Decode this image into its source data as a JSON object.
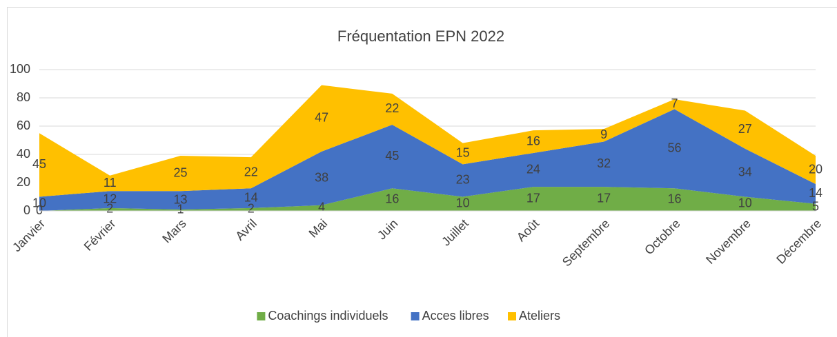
{
  "chart_data": {
    "type": "area",
    "stacked": true,
    "title": "Fréquentation EPN 2022",
    "categories": [
      "Janvier",
      "Février",
      "Mars",
      "Avril",
      "Mai",
      "Juin",
      "Juillet",
      "Août",
      "Septembre",
      "Octobre",
      "Novembre",
      "Décembre"
    ],
    "series": [
      {
        "name": "Coachings individuels",
        "color": "#70ad47",
        "values": [
          0,
          2,
          1,
          2,
          4,
          16,
          10,
          17,
          17,
          16,
          10,
          5
        ]
      },
      {
        "name": "Acces libres",
        "color": "#4472c4",
        "values": [
          10,
          12,
          13,
          14,
          38,
          45,
          23,
          24,
          32,
          56,
          34,
          14
        ]
      },
      {
        "name": "Ateliers",
        "color": "#ffc000",
        "values": [
          45,
          11,
          25,
          22,
          47,
          22,
          15,
          16,
          9,
          7,
          27,
          20
        ]
      }
    ],
    "ylim": [
      0,
      100
    ],
    "yticks": [
      0,
      20,
      40,
      60,
      80,
      100
    ],
    "grid": true,
    "legend": "bottom"
  }
}
